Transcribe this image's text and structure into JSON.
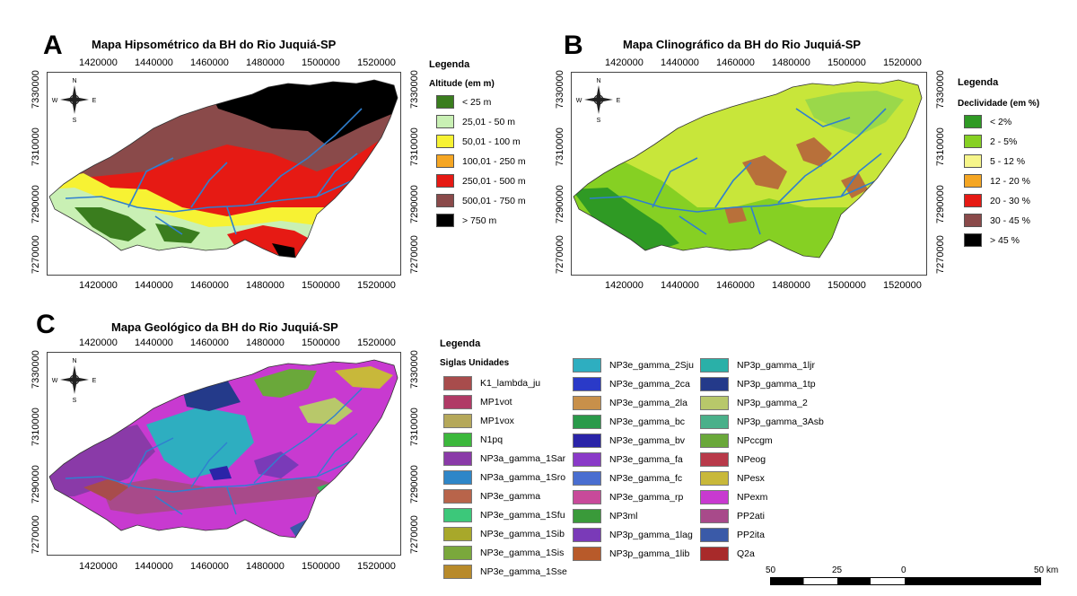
{
  "panels": {
    "a": {
      "letter": "A",
      "title": "Mapa Hipsométrico da BH do Rio Juquiá-SP",
      "legend_title": "Legenda",
      "legend_sub": "Altitude (em m)",
      "classes": [
        {
          "label": "< 25 m",
          "color": "#3a7d1e"
        },
        {
          "label": "25,01 - 50 m",
          "color": "#c9f0b4"
        },
        {
          "label": "50,01 - 100 m",
          "color": "#f7f233"
        },
        {
          "label": "100,01 - 250 m",
          "color": "#f5a623"
        },
        {
          "label": "250,01 - 500 m",
          "color": "#e61a14"
        },
        {
          "label": "500,01 - 750 m",
          "color": "#8a4a4a"
        },
        {
          "label": "> 750 m",
          "color": "#000000"
        }
      ]
    },
    "b": {
      "letter": "B",
      "title": "Mapa Clinográfico da BH do Rio Juquiá-SP",
      "legend_title": "Legenda",
      "legend_sub": "Declividade (em %)",
      "classes": [
        {
          "label": "< 2%",
          "color": "#2f9a24"
        },
        {
          "label": "2 - 5%",
          "color": "#86d023"
        },
        {
          "label": "5 - 12 %",
          "color": "#f6f58a"
        },
        {
          "label": "12 - 20 %",
          "color": "#f5a623"
        },
        {
          "label": "20 - 30 %",
          "color": "#e61a14"
        },
        {
          "label": "30 - 45 %",
          "color": "#8a4a4a"
        },
        {
          "label": "> 45 %",
          "color": "#000000"
        }
      ]
    },
    "c": {
      "letter": "C",
      "title": "Mapa Geológico da BH do Rio Juquiá-SP",
      "legend_title": "Legenda",
      "legend_sub": "Siglas Unidades",
      "col1": [
        {
          "label": "K1_lambda_ju",
          "color": "#a84c4c"
        },
        {
          "label": "MP1vot",
          "color": "#b03a66"
        },
        {
          "label": "MP1vox",
          "color": "#b5a85a"
        },
        {
          "label": "N1pq",
          "color": "#3cb83c"
        },
        {
          "label": "NP3a_gamma_1Sar",
          "color": "#8a3aa8"
        },
        {
          "label": "NP3a_gamma_1Sro",
          "color": "#2e86c8"
        },
        {
          "label": "NP3e_gamma",
          "color": "#b8644a"
        },
        {
          "label": "NP3e_gamma_1Sfu",
          "color": "#3cc87a"
        },
        {
          "label": "NP3e_gamma_1Sib",
          "color": "#a8a82a"
        },
        {
          "label": "NP3e_gamma_1Sis",
          "color": "#7aa83c"
        },
        {
          "label": "NP3e_gamma_1Sse",
          "color": "#b88a2a"
        }
      ],
      "col2": [
        {
          "label": "NP3e_gamma_2Sju",
          "color": "#2eaec0"
        },
        {
          "label": "NP3e_gamma_2ca",
          "color": "#2a3ac8"
        },
        {
          "label": "NP3e_gamma_2la",
          "color": "#c8904a"
        },
        {
          "label": "NP3e_gamma_bc",
          "color": "#2a9a4a"
        },
        {
          "label": "NP3e_gamma_bv",
          "color": "#2a24a8"
        },
        {
          "label": "NP3e_gamma_fa",
          "color": "#8a3ac8"
        },
        {
          "label": "NP3e_gamma_fc",
          "color": "#4a6ed0"
        },
        {
          "label": "NP3e_gamma_rp",
          "color": "#c84a9a"
        },
        {
          "label": "NP3ml",
          "color": "#3a9a3a"
        },
        {
          "label": "NP3p_gamma_1lag",
          "color": "#7a3ab8"
        },
        {
          "label": "NP3p_gamma_1lib",
          "color": "#b85a2a"
        }
      ],
      "col3": [
        {
          "label": "NP3p_gamma_1ljr",
          "color": "#2ab0a8"
        },
        {
          "label": "NP3p_gamma_1tp",
          "color": "#243a8a"
        },
        {
          "label": "NP3p_gamma_2",
          "color": "#b8c86a"
        },
        {
          "label": "NP3p_gamma_3Asb",
          "color": "#4ab08a"
        },
        {
          "label": "NPccgm",
          "color": "#6aa83a"
        },
        {
          "label": "NPeog",
          "color": "#b83a4a"
        },
        {
          "label": "NPesx",
          "color": "#c8b83a"
        },
        {
          "label": "NPexm",
          "color": "#c83ad0"
        },
        {
          "label": "PP2ati",
          "color": "#a84a8a"
        },
        {
          "label": "PP2ita",
          "color": "#3a5aa8"
        },
        {
          "label": "Q2a",
          "color": "#a82a2a"
        }
      ]
    }
  },
  "x_ticks": [
    "1420000",
    "1440000",
    "1460000",
    "1480000",
    "1500000",
    "1520000"
  ],
  "y_ticks": [
    "7330000",
    "7310000",
    "7290000",
    "7270000"
  ],
  "compass": {
    "n": "N",
    "s": "S",
    "w": "W",
    "e": "E"
  },
  "scale_bar": {
    "labels": [
      "50",
      "25",
      "0",
      "50 km"
    ]
  },
  "river_color": "#2f7fd0"
}
